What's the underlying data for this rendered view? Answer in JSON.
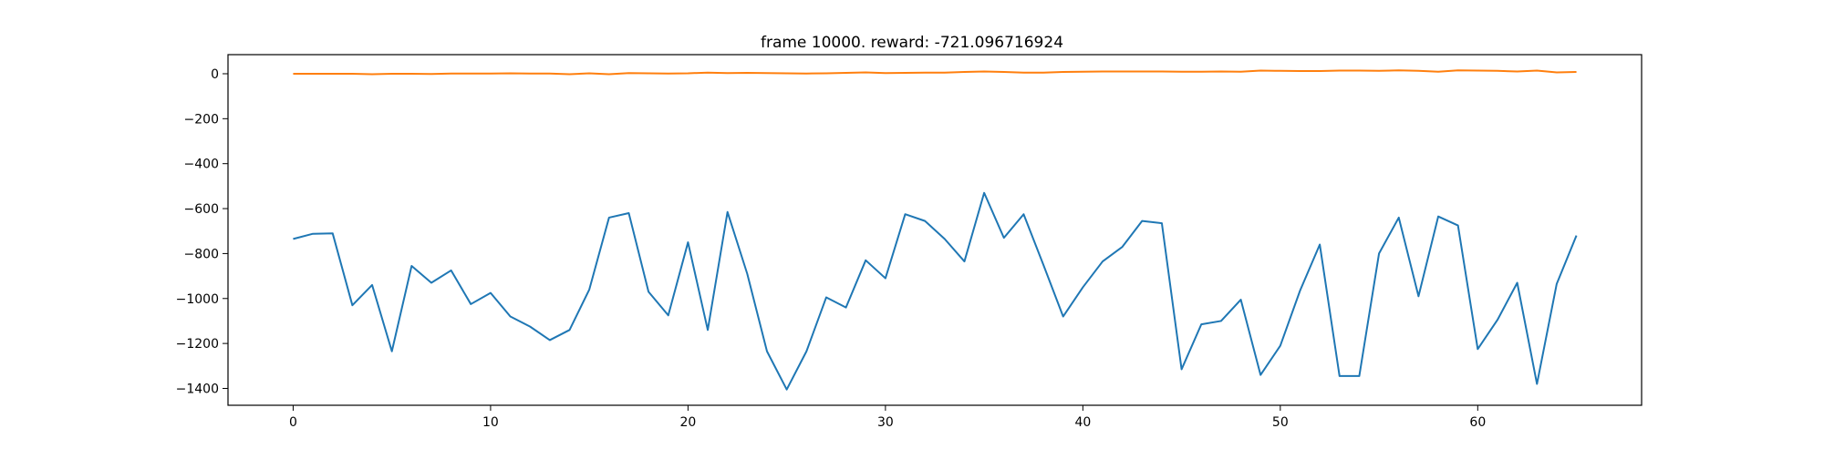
{
  "chart_data": {
    "type": "line",
    "title": "frame 10000. reward: -721.096716924",
    "xlabel": "",
    "ylabel": "",
    "xlim": [
      -3.3,
      68.3
    ],
    "ylim": [
      -1475,
      85
    ],
    "xticks": [
      0,
      10,
      20,
      30,
      40,
      50,
      60
    ],
    "yticks": [
      0,
      -200,
      -400,
      -600,
      -800,
      -1000,
      -1200,
      -1400
    ],
    "grid": false,
    "legend": "none",
    "x": [
      0,
      1,
      2,
      3,
      4,
      5,
      6,
      7,
      8,
      9,
      10,
      11,
      12,
      13,
      14,
      15,
      16,
      17,
      18,
      19,
      20,
      21,
      22,
      23,
      24,
      25,
      26,
      27,
      28,
      29,
      30,
      31,
      32,
      33,
      34,
      35,
      36,
      37,
      38,
      39,
      40,
      41,
      42,
      43,
      44,
      45,
      46,
      47,
      48,
      49,
      50,
      51,
      52,
      53,
      54,
      55,
      56,
      57,
      58,
      59,
      60,
      61,
      62,
      63,
      64,
      65
    ],
    "series": [
      {
        "color": "#1f77b4",
        "values": [
          -735,
          -712,
          -710,
          -1030,
          -940,
          -1235,
          -855,
          -930,
          -875,
          -1025,
          -975,
          -1080,
          -1125,
          -1185,
          -1140,
          -960,
          -640,
          -620,
          -970,
          -1075,
          -750,
          -1140,
          -615,
          -890,
          -1235,
          -1405,
          -1235,
          -995,
          -1040,
          -830,
          -910,
          -625,
          -655,
          -735,
          -835,
          -530,
          -730,
          -625,
          -850,
          -1080,
          -950,
          -835,
          -770,
          -655,
          -665,
          -1315,
          -1115,
          -1100,
          -1005,
          -1340,
          -1210,
          -965,
          -760,
          -1345,
          -1345,
          -800,
          -640,
          -990,
          -635,
          -675,
          -1225,
          -1095,
          -930,
          -1380,
          -935,
          -720
        ]
      },
      {
        "color": "#ff7f0e",
        "values": [
          0,
          0,
          0,
          0,
          -2,
          0,
          0,
          -1,
          1,
          1,
          1,
          2,
          1,
          1,
          -2,
          2,
          -2,
          3,
          2,
          1,
          2,
          5,
          3,
          4,
          3,
          2,
          1,
          2,
          4,
          6,
          3,
          4,
          5,
          5,
          8,
          10,
          8,
          5,
          5,
          8,
          9,
          10,
          10,
          10,
          10,
          9,
          9,
          10,
          9,
          14,
          13,
          12,
          12,
          14,
          14,
          13,
          15,
          13,
          9,
          15,
          14,
          13,
          10,
          14,
          6,
          8
        ]
      }
    ]
  }
}
